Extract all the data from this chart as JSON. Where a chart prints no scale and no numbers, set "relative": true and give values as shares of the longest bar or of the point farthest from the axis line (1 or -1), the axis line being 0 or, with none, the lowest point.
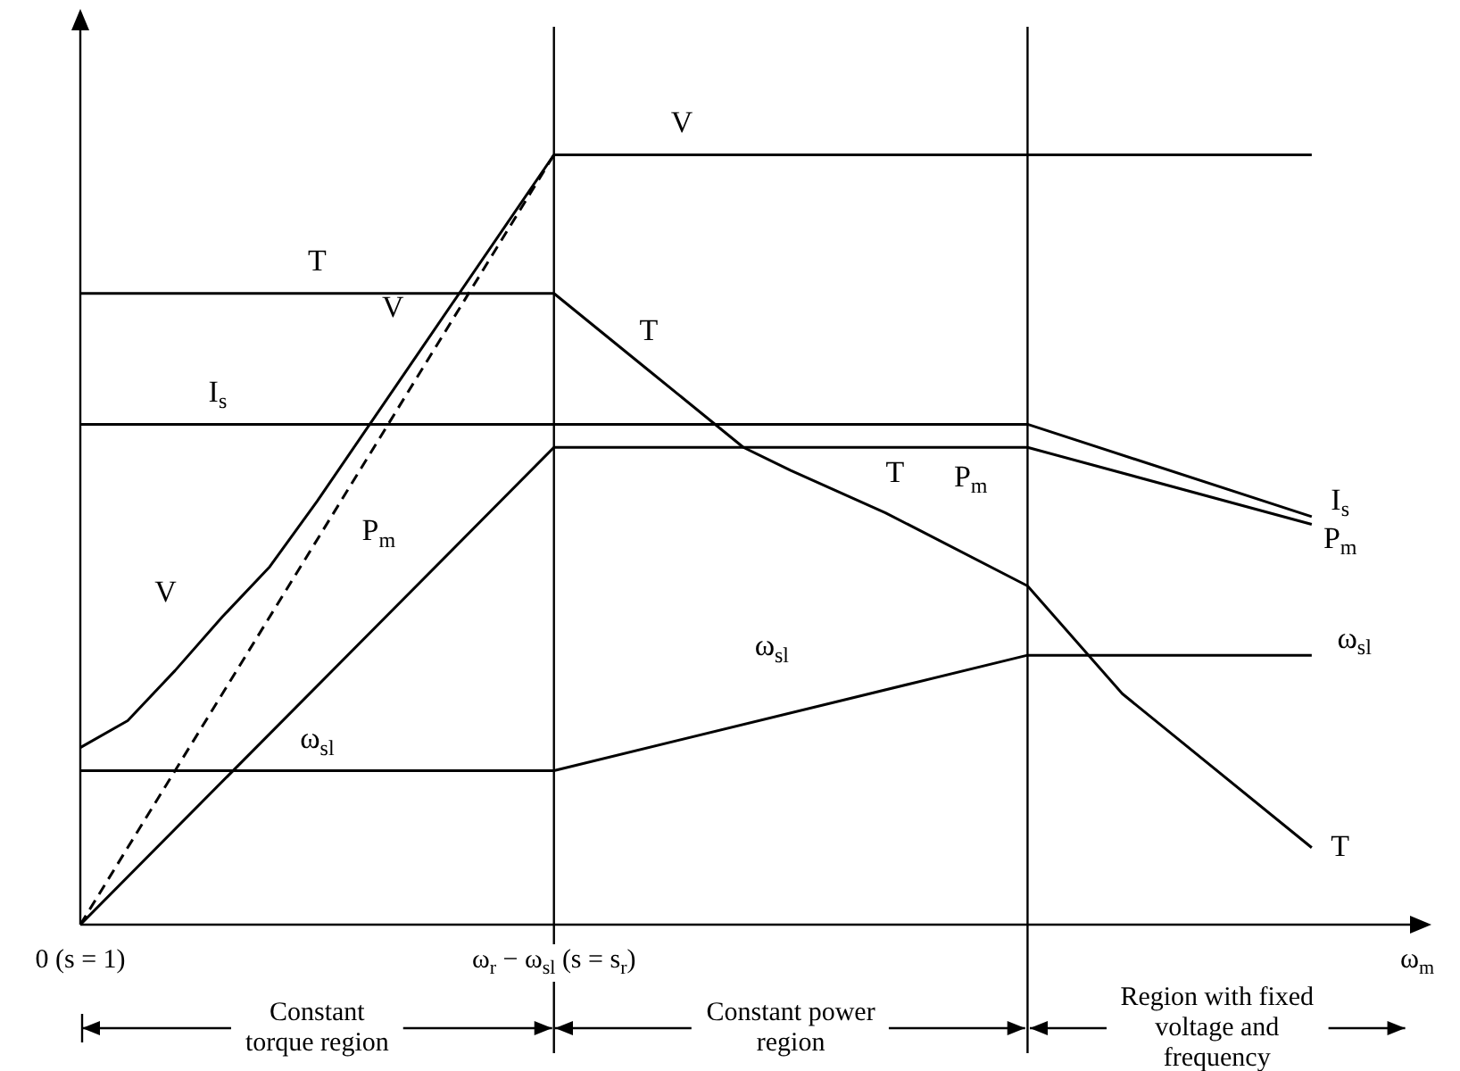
{
  "chart_data": {
    "type": "line",
    "relative": true,
    "marker": "none",
    "legend": false,
    "xlabel": "ω$_{m}$",
    "categories": [
      "0 (s = 1)",
      null,
      null,
      null,
      null,
      null,
      null,
      null,
      null,
      null,
      "ω$_{r}$ − ω$_{sl}$ (s = s$_{r}$)",
      null,
      null,
      null,
      null,
      null,
      null,
      null,
      null,
      null,
      null,
      null,
      null,
      null,
      null,
      null,
      null,
      null,
      null
    ],
    "series": [
      {
        "color": "#000000",
        "values": [
          0.23,
          0.265,
          0.33,
          0.4,
          0.465,
          0.55,
          null,
          0.73,
          null,
          null,
          1,
          null,
          null,
          null,
          null,
          null,
          null,
          null,
          null,
          null,
          null,
          null,
          null,
          null,
          null,
          null,
          1,
          null,
          null
        ]
      },
      {
        "color": "#000000",
        "line_style": "dashed",
        "values": [
          0,
          null,
          null,
          null,
          null,
          null,
          null,
          null,
          null,
          null,
          1,
          null,
          null,
          null,
          null,
          null,
          null,
          null,
          null,
          null,
          null,
          null,
          null,
          null,
          null,
          null,
          null,
          null,
          null
        ]
      },
      {
        "color": "#000000",
        "values": [
          0.82,
          null,
          null,
          null,
          null,
          null,
          null,
          null,
          null,
          null,
          0.82,
          null,
          0.72,
          null,
          0.62,
          0.59,
          null,
          0.535,
          null,
          null,
          0.44,
          null,
          0.3,
          null,
          null,
          null,
          0.1,
          null,
          null
        ]
      },
      {
        "color": "#000000",
        "values": [
          0.65,
          null,
          null,
          null,
          null,
          null,
          null,
          null,
          null,
          null,
          null,
          null,
          null,
          null,
          null,
          null,
          null,
          null,
          null,
          null,
          0.65,
          null,
          null,
          null,
          null,
          null,
          0.53,
          null,
          null
        ]
      },
      {
        "color": "#000000",
        "values": [
          0,
          null,
          null,
          null,
          null,
          null,
          null,
          null,
          null,
          null,
          0.62,
          null,
          null,
          null,
          null,
          null,
          null,
          null,
          null,
          null,
          0.62,
          null,
          null,
          null,
          null,
          null,
          0.52,
          null,
          null
        ]
      },
      {
        "color": "#000000",
        "values": [
          0.2,
          null,
          null,
          null,
          null,
          null,
          null,
          null,
          null,
          null,
          0.2,
          null,
          null,
          null,
          null,
          null,
          null,
          null,
          null,
          null,
          0.35,
          null,
          null,
          null,
          null,
          null,
          0.35,
          null,
          null
        ]
      }
    ],
    "annotations": [
      "V",
      "T",
      "V",
      "I$_{s}$",
      "T",
      "P$_{m}$",
      "V",
      "ω$_{sl}$",
      "ω$_{sl}$",
      "T",
      "P$_{m}$",
      "I$_{s}$",
      "P$_{m}$",
      "ω$_{sl}$",
      "T",
      "Constant torque region",
      "Constant power region",
      "Region with fixed voltage and frequency"
    ]
  }
}
